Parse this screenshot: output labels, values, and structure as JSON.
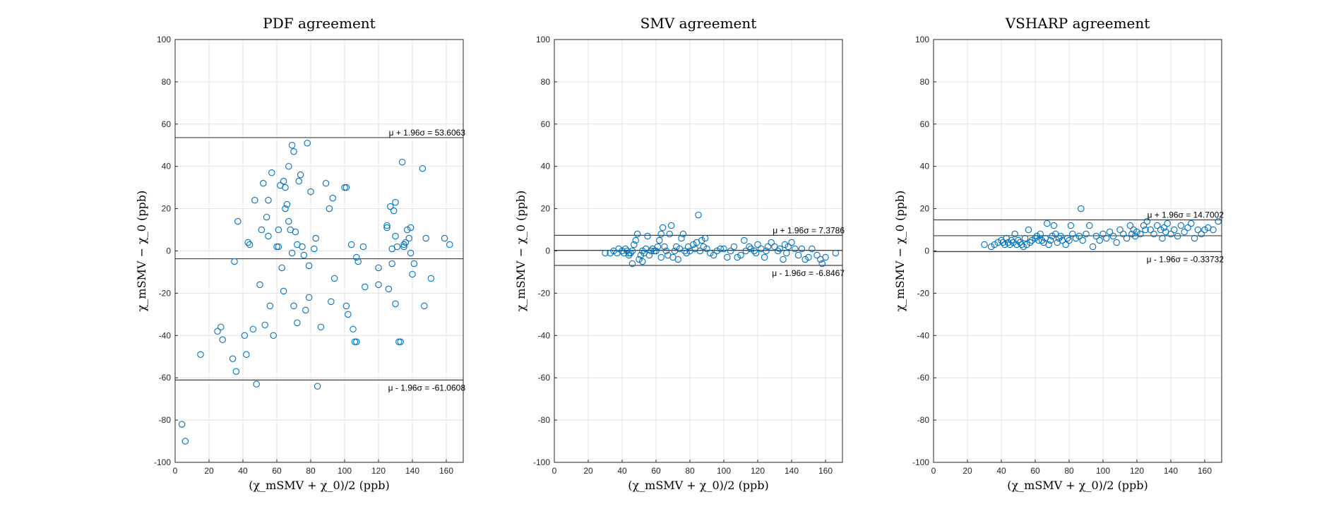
{
  "figure": {
    "background": "#ffffff",
    "marker_color": "#0072BD",
    "line_color": "#404040"
  },
  "chart_data": [
    {
      "type": "scatter",
      "title": "PDF agreement",
      "ylabel": "χ_mSMV − χ_0 (ppb)",
      "xlabel": "(χ_mSMV + χ_0)/2 (ppb)",
      "xlim": [
        0,
        170
      ],
      "ylim": [
        -100,
        100
      ],
      "xticks": [
        0,
        20,
        40,
        60,
        80,
        100,
        120,
        140,
        160
      ],
      "yticks": [
        -100,
        -80,
        -60,
        -40,
        -20,
        0,
        20,
        40,
        60,
        80,
        100
      ],
      "grid": true,
      "mean": -3.7,
      "upper_loa": 53.6063,
      "lower_loa": -61.0608,
      "upper_label": "μ + 1.96σ = 53.6063",
      "lower_label": "μ - 1.96σ = -61.0608",
      "x": [
        4,
        6,
        15,
        25,
        27,
        28,
        34,
        35,
        36,
        37,
        41,
        42,
        43,
        44,
        46,
        47,
        48,
        50,
        51,
        52,
        53,
        54,
        55,
        55,
        56,
        57,
        58,
        60,
        61,
        61,
        62,
        63,
        64,
        64,
        65,
        65,
        66,
        67,
        67,
        68,
        69,
        69,
        70,
        70,
        71,
        72,
        72,
        73,
        74,
        75,
        76,
        77,
        78,
        79,
        79,
        80,
        82,
        83,
        84,
        86,
        89,
        91,
        92,
        93,
        94,
        100,
        101,
        101,
        102,
        104,
        105,
        106,
        107,
        107,
        108,
        111,
        112,
        120,
        120,
        125,
        125,
        126,
        127,
        128,
        128,
        129,
        130,
        130,
        130,
        131,
        132,
        133,
        134,
        135,
        135,
        136,
        137,
        138,
        139,
        139,
        140,
        141,
        146,
        147,
        148,
        151,
        159,
        162
      ],
      "y": [
        -82,
        -90,
        -49,
        -38,
        -36,
        -42,
        -51,
        -5,
        -57,
        14,
        -40,
        -49,
        4,
        3,
        -37,
        24,
        -63,
        -16,
        10,
        32,
        -35,
        16,
        7,
        24,
        -26,
        37,
        -40,
        2,
        2,
        10,
        31,
        -8,
        -19,
        33,
        30,
        20,
        22,
        40,
        14,
        10,
        -1,
        50,
        -26,
        47,
        9,
        3,
        -34,
        33,
        36,
        2,
        -2,
        -28,
        51,
        -7,
        -22,
        28,
        1,
        6,
        -64,
        -36,
        32,
        20,
        -24,
        25,
        -13,
        30,
        30,
        -26,
        -30,
        3,
        -37,
        -43,
        -43,
        -3,
        -5,
        2,
        -17,
        -16,
        -8,
        12,
        11,
        -18,
        21,
        1,
        -6,
        19,
        -25,
        7,
        23,
        2,
        -43,
        -43,
        42,
        3,
        2,
        4,
        10,
        6,
        11,
        -1,
        -11,
        -6,
        39,
        -26,
        6,
        -13,
        6,
        3
      ]
    },
    {
      "type": "scatter",
      "title": "SMV agreement",
      "ylabel": "χ_mSMV − χ_0 (ppb)",
      "xlabel": "(χ_mSMV + χ_0)/2 (ppb)",
      "xlim": [
        0,
        170
      ],
      "ylim": [
        -100,
        100
      ],
      "xticks": [
        0,
        20,
        40,
        60,
        80,
        100,
        120,
        140,
        160
      ],
      "yticks": [
        -100,
        -80,
        -60,
        -40,
        -20,
        0,
        20,
        40,
        60,
        80,
        100
      ],
      "grid": true,
      "mean": 0.3,
      "upper_loa": 7.3786,
      "lower_loa": -6.8467,
      "upper_label": "μ + 1.96σ = 7.3786",
      "lower_label": "μ - 1.96σ = -6.8467",
      "x": [
        30,
        33,
        35,
        37,
        38,
        40,
        41,
        42,
        43,
        44,
        44,
        45,
        46,
        46,
        47,
        48,
        49,
        50,
        51,
        52,
        52,
        53,
        54,
        55,
        56,
        57,
        58,
        59,
        60,
        61,
        62,
        63,
        63,
        64,
        65,
        66,
        67,
        68,
        69,
        70,
        71,
        72,
        73,
        74,
        75,
        76,
        77,
        78,
        79,
        80,
        82,
        83,
        84,
        85,
        86,
        87,
        88,
        89,
        90,
        92,
        94,
        96,
        98,
        100,
        102,
        104,
        106,
        108,
        110,
        112,
        113,
        115,
        116,
        118,
        119,
        120,
        122,
        124,
        125,
        126,
        128,
        130,
        132,
        133,
        135,
        136,
        137,
        138,
        140,
        142,
        144,
        146,
        148,
        150,
        152,
        155,
        157,
        158,
        160,
        166
      ],
      "y": [
        -1,
        -1,
        0,
        -1,
        1,
        0,
        -1,
        1,
        0,
        -1,
        -2,
        -1,
        0,
        -6,
        3,
        5,
        8,
        -4,
        -2,
        0,
        -5,
        -1,
        1,
        7,
        -2,
        0,
        1,
        0,
        0,
        2,
        5,
        -3,
        8,
        11,
        2,
        0,
        -2,
        8,
        12,
        -3,
        0,
        2,
        -4,
        1,
        6,
        8,
        0,
        -1,
        2,
        0,
        3,
        1,
        4,
        17,
        0,
        5,
        2,
        6,
        1,
        -1,
        -2,
        0,
        1,
        1,
        -3,
        0,
        2,
        -3,
        -2,
        5,
        0,
        2,
        1,
        0,
        -1,
        3,
        1,
        -3,
        0,
        2,
        4,
        2,
        0,
        1,
        -4,
        3,
        -1,
        2,
        4,
        1,
        -2,
        1,
        -4,
        -3,
        1,
        -2,
        -4,
        -6,
        -3,
        -1
      ]
    },
    {
      "type": "scatter",
      "title": "VSHARP agreement",
      "ylabel": "χ_mSMV − χ_0 (ppb)",
      "xlabel": "(χ_mSMV + χ_0)/2 (ppb)",
      "xlim": [
        0,
        170
      ],
      "ylim": [
        -100,
        100
      ],
      "xticks": [
        0,
        20,
        40,
        60,
        80,
        100,
        120,
        140,
        160
      ],
      "yticks": [
        -100,
        -80,
        -60,
        -40,
        -20,
        0,
        20,
        40,
        60,
        80,
        100
      ],
      "grid": true,
      "mean": 7.2,
      "upper_loa": 14.7002,
      "lower_loa": -0.33732,
      "upper_label": "μ + 1.96σ = 14.7002",
      "lower_label": "μ - 1.96σ = -0.33732",
      "x": [
        30,
        34,
        36,
        38,
        40,
        41,
        42,
        43,
        44,
        45,
        46,
        47,
        48,
        49,
        50,
        51,
        52,
        53,
        54,
        55,
        56,
        57,
        58,
        60,
        61,
        62,
        63,
        64,
        65,
        66,
        67,
        68,
        69,
        70,
        71,
        72,
        73,
        74,
        75,
        76,
        78,
        79,
        80,
        81,
        82,
        84,
        86,
        87,
        88,
        90,
        92,
        94,
        96,
        98,
        100,
        102,
        104,
        106,
        108,
        110,
        112,
        114,
        116,
        117,
        118,
        119,
        120,
        122,
        124,
        125,
        126,
        128,
        130,
        132,
        134,
        135,
        136,
        137,
        138,
        140,
        142,
        144,
        146,
        148,
        150,
        152,
        154,
        156,
        158,
        160,
        162,
        165,
        168
      ],
      "y": [
        3,
        2,
        3,
        4,
        5,
        4,
        3,
        6,
        4,
        3,
        5,
        4,
        8,
        3,
        5,
        4,
        3,
        2,
        6,
        3,
        10,
        4,
        5,
        6,
        7,
        5,
        8,
        5,
        4,
        6,
        13,
        3,
        5,
        7,
        12,
        8,
        4,
        6,
        7,
        5,
        3,
        6,
        5,
        12,
        8,
        6,
        7,
        20,
        5,
        8,
        12,
        2,
        7,
        5,
        8,
        6,
        9,
        7,
        4,
        10,
        8,
        6,
        12,
        8,
        10,
        7,
        9,
        8,
        12,
        10,
        14,
        10,
        8,
        12,
        10,
        6,
        11,
        9,
        13,
        8,
        10,
        7,
        12,
        9,
        11,
        13,
        6,
        10,
        8,
        10,
        11,
        10,
        14
      ]
    }
  ]
}
